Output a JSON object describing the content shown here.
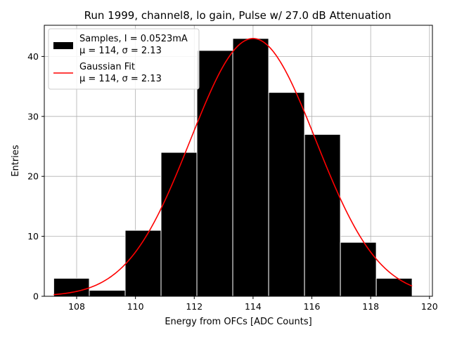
{
  "chart_data": {
    "type": "bar",
    "title": "Run 1999, channel8, lo gain, Pulse w/ 27.0 dB Attenuation",
    "xlabel": "Energy from OFCs [ADC Counts]",
    "ylabel": "Entries",
    "xlim": [
      106.9,
      120.1
    ],
    "ylim": [
      0,
      45.2
    ],
    "grid": true,
    "legend_position": "top-left",
    "x_ticks": [
      108,
      110,
      112,
      114,
      116,
      118,
      120
    ],
    "y_ticks": [
      0,
      10,
      20,
      30,
      40
    ],
    "bins": [
      {
        "left": 107.22,
        "right": 108.43,
        "count": 3
      },
      {
        "left": 108.43,
        "right": 109.65,
        "count": 1
      },
      {
        "left": 109.65,
        "right": 110.87,
        "count": 11
      },
      {
        "left": 110.87,
        "right": 112.09,
        "count": 24
      },
      {
        "left": 112.09,
        "right": 113.31,
        "count": 41
      },
      {
        "left": 113.31,
        "right": 114.53,
        "count": 43
      },
      {
        "left": 114.53,
        "right": 115.75,
        "count": 34
      },
      {
        "left": 115.75,
        "right": 116.97,
        "count": 27
      },
      {
        "left": 116.97,
        "right": 118.19,
        "count": 9
      },
      {
        "left": 118.19,
        "right": 119.41,
        "count": 3
      }
    ],
    "fit": {
      "mu": 114.0,
      "sigma": 2.13,
      "amplitude": 43,
      "x_range": [
        107.22,
        119.41
      ]
    },
    "series": [
      {
        "name": "Samples, I = 0.0523mA",
        "detail": "μ = 114, σ = 2.13",
        "color": "#000000",
        "kind": "histogram"
      },
      {
        "name": "Gaussian Fit",
        "detail": "μ = 114, σ = 2.13",
        "color": "#ff0000",
        "kind": "line"
      }
    ]
  }
}
